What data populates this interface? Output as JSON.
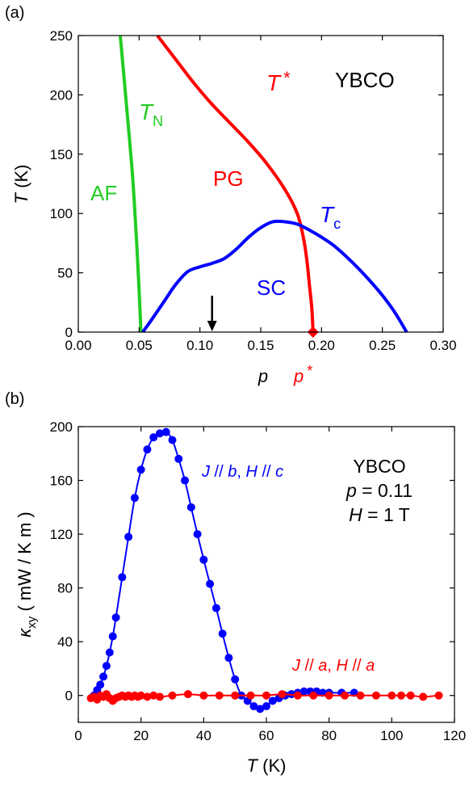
{
  "panel_labels": [
    "(a)",
    "(b)"
  ],
  "colors": {
    "red": "#ff0000",
    "blue": "#0000ff",
    "green": "#22cc22",
    "black": "#000000"
  },
  "chart_data": [
    {
      "type": "line",
      "title": "",
      "xlabel": "p",
      "ylabel_italic": "T",
      "ylabel_unit": " (K)",
      "xlim": [
        0.0,
        0.3
      ],
      "ylim": [
        0,
        250
      ],
      "xticks": [
        "0.00",
        "0.05",
        "0.10",
        "0.15",
        "0.20",
        "0.25",
        "0.30"
      ],
      "yticks": [
        "0",
        "50",
        "100",
        "150",
        "200",
        "250"
      ],
      "xtick_values": [
        0,
        0.05,
        0.1,
        0.15,
        0.2,
        0.25,
        0.3
      ],
      "ytick_values": [
        0,
        50,
        100,
        150,
        200,
        250
      ],
      "series": [
        {
          "name": "T_N",
          "color": "#22cc22",
          "x": [
            0.0345,
            0.038,
            0.041,
            0.044,
            0.046,
            0.048,
            0.05,
            0.0515
          ],
          "y": [
            250,
            210,
            175,
            140,
            110,
            75,
            35,
            0
          ]
        },
        {
          "name": "T*",
          "color": "#ff0000",
          "x": [
            0.065,
            0.08,
            0.095,
            0.11,
            0.125,
            0.14,
            0.155,
            0.17,
            0.18,
            0.185,
            0.188,
            0.19,
            0.192,
            0.193
          ],
          "y": [
            250,
            230,
            210,
            192,
            176,
            160,
            142,
            120,
            100,
            80,
            60,
            40,
            20,
            0
          ]
        },
        {
          "name": "T_c",
          "color": "#0000ff",
          "x": [
            0.053,
            0.06,
            0.07,
            0.08,
            0.09,
            0.1,
            0.11,
            0.12,
            0.13,
            0.14,
            0.15,
            0.16,
            0.17,
            0.18,
            0.19,
            0.2,
            0.21,
            0.22,
            0.23,
            0.24,
            0.25,
            0.26,
            0.27
          ],
          "y": [
            0,
            10,
            25,
            40,
            51,
            55,
            58,
            62,
            70,
            80,
            88,
            93,
            93,
            91,
            86,
            80,
            73,
            64,
            54,
            43,
            31,
            17,
            0
          ]
        }
      ],
      "annotations": {
        "af": "AF",
        "pg": "PG",
        "sc": "SC",
        "material": "YBCO",
        "tn_main": "T",
        "tn_sub": "N",
        "tstar_main": "T",
        "tstar_sup": "*",
        "tc_main": "T",
        "tc_sub": "c",
        "pstar_main": "p",
        "pstar_sup": "*"
      },
      "arrow_p": 0.11,
      "pstar_marker": {
        "x": 0.193,
        "y": 0
      }
    },
    {
      "type": "line",
      "title": "",
      "xlabel_italic": "T",
      "xlabel_unit": " (K)",
      "ylabel": "κxy ( mW / K m )",
      "xlim": [
        0,
        120
      ],
      "ylim": [
        -20,
        200
      ],
      "xticks": [
        "0",
        "20",
        "40",
        "60",
        "80",
        "100",
        "120"
      ],
      "yticks": [
        "0",
        "40",
        "80",
        "120",
        "160",
        "200"
      ],
      "xtick_values": [
        0,
        20,
        40,
        60,
        80,
        100,
        120
      ],
      "ytick_values": [
        0,
        40,
        80,
        120,
        160,
        200
      ],
      "series": [
        {
          "name": "J // b, H // c",
          "color": "#0000ff",
          "x": [
            5,
            6,
            7,
            8,
            9,
            10,
            11,
            12,
            14,
            16,
            18,
            20,
            22,
            24,
            26,
            28,
            30,
            32,
            34,
            36,
            38,
            40,
            42,
            44,
            46,
            48,
            50,
            52,
            54,
            56,
            58,
            60,
            62,
            64,
            66,
            68,
            70,
            72,
            74,
            76,
            78,
            80,
            84,
            88
          ],
          "y": [
            0,
            4,
            8,
            14,
            22,
            32,
            44,
            58,
            88,
            118,
            147,
            168,
            183,
            192,
            195,
            196,
            190,
            176,
            160,
            140,
            120,
            101,
            83,
            65,
            46,
            28,
            12,
            0,
            -4,
            -8,
            -10,
            -8,
            -4,
            -2,
            0,
            1,
            2,
            3,
            3,
            3,
            2,
            2,
            2,
            2
          ]
        },
        {
          "name": "J // a, H // a",
          "color": "#ff0000",
          "x": [
            4,
            5,
            6,
            7,
            8,
            9,
            10,
            11,
            12,
            13,
            14,
            15,
            16,
            17,
            18,
            19,
            20,
            22,
            24,
            26,
            30,
            35,
            40,
            45,
            50,
            55,
            60,
            65,
            70,
            75,
            80,
            85,
            90,
            95,
            100,
            103,
            106,
            110,
            115
          ],
          "y": [
            -2,
            -1,
            -3,
            0,
            -1,
            1,
            -2,
            -4,
            -2,
            -1,
            0,
            -1,
            0,
            -1,
            0,
            -1,
            0,
            -1,
            0,
            -1,
            0,
            1,
            0,
            0,
            0,
            0,
            0,
            1,
            0,
            0,
            0,
            0,
            0,
            0,
            0,
            0,
            0,
            -1,
            0
          ]
        }
      ],
      "annotations": {
        "material": "YBCO",
        "p_label": "p",
        "p_value": " = 0.11",
        "h_label": "H",
        "h_value": " = 1 T",
        "s1_j": "J",
        "s1_mid": " // ",
        "s1_b": "b",
        "s1_sep": ", ",
        "s1_h": "H",
        "s1_mid2": " // ",
        "s1_c": "c",
        "s2_j": "J",
        "s2_mid": " // ",
        "s2_a": "a",
        "s2_sep": ", ",
        "s2_h": "H",
        "s2_mid2": " // ",
        "s2_a2": "a"
      }
    }
  ]
}
